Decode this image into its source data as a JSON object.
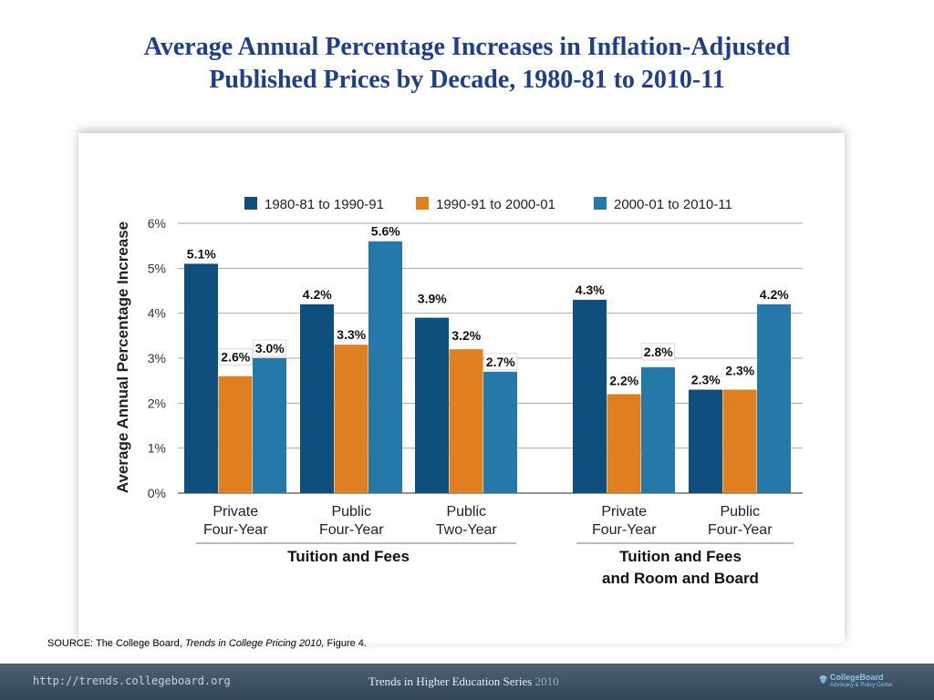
{
  "title_line1": "Average Annual Percentage Increases in Inflation-Adjusted",
  "title_line2": "Published Prices by Decade, 1980-81 to 2010-11",
  "source": {
    "prefix": "SOURCE: The College Board, ",
    "publication": "Trends in College Pricing 2010,",
    "suffix": " Figure 4."
  },
  "footer": {
    "url": "http://trends.collegeboard.org",
    "series_text": "Trends in Higher Education Series ",
    "series_year": "2010",
    "logo_name": "CollegeBoard",
    "logo_sub": "Advocacy & Policy Center"
  },
  "chart_data": {
    "type": "bar",
    "title": "",
    "ylabel": "Average Annual Percentage Increase",
    "ylim": [
      0,
      6
    ],
    "yticks": [
      "0%",
      "1%",
      "2%",
      "3%",
      "4%",
      "5%",
      "6%"
    ],
    "grid": true,
    "legend_position": "top",
    "colors": [
      "#0f4f7d",
      "#e07f1f",
      "#2479a9"
    ],
    "series": [
      {
        "name": "1980-81 to 1990-91",
        "values": [
          5.1,
          4.2,
          3.9,
          4.3,
          2.3
        ],
        "labels": [
          "5.1%",
          "4.2%",
          "3.9%",
          "4.3%",
          "2.3%"
        ]
      },
      {
        "name": "1990-91 to 2000-01",
        "values": [
          2.6,
          3.3,
          3.2,
          2.2,
          2.3
        ],
        "labels": [
          "2.6%",
          "3.3%",
          "3.2%",
          "2.2%",
          "2.3%"
        ]
      },
      {
        "name": "2000-01 to 2010-11",
        "values": [
          3.0,
          5.6,
          2.7,
          2.8,
          4.2
        ],
        "labels": [
          "3.0%",
          "5.6%",
          "2.7%",
          "2.8%",
          "4.2%"
        ]
      }
    ],
    "categories": [
      {
        "line1": "Private",
        "line2": "Four-Year"
      },
      {
        "line1": "Public",
        "line2": "Four-Year"
      },
      {
        "line1": "Public",
        "line2": "Two-Year"
      },
      {
        "line1": "Private",
        "line2": "Four-Year"
      },
      {
        "line1": "Public",
        "line2": "Four-Year"
      }
    ],
    "groups": [
      {
        "line1": "Tuition and Fees",
        "line2": ""
      },
      {
        "line1": "Tuition and Fees",
        "line2": "and Room and Board"
      }
    ]
  }
}
